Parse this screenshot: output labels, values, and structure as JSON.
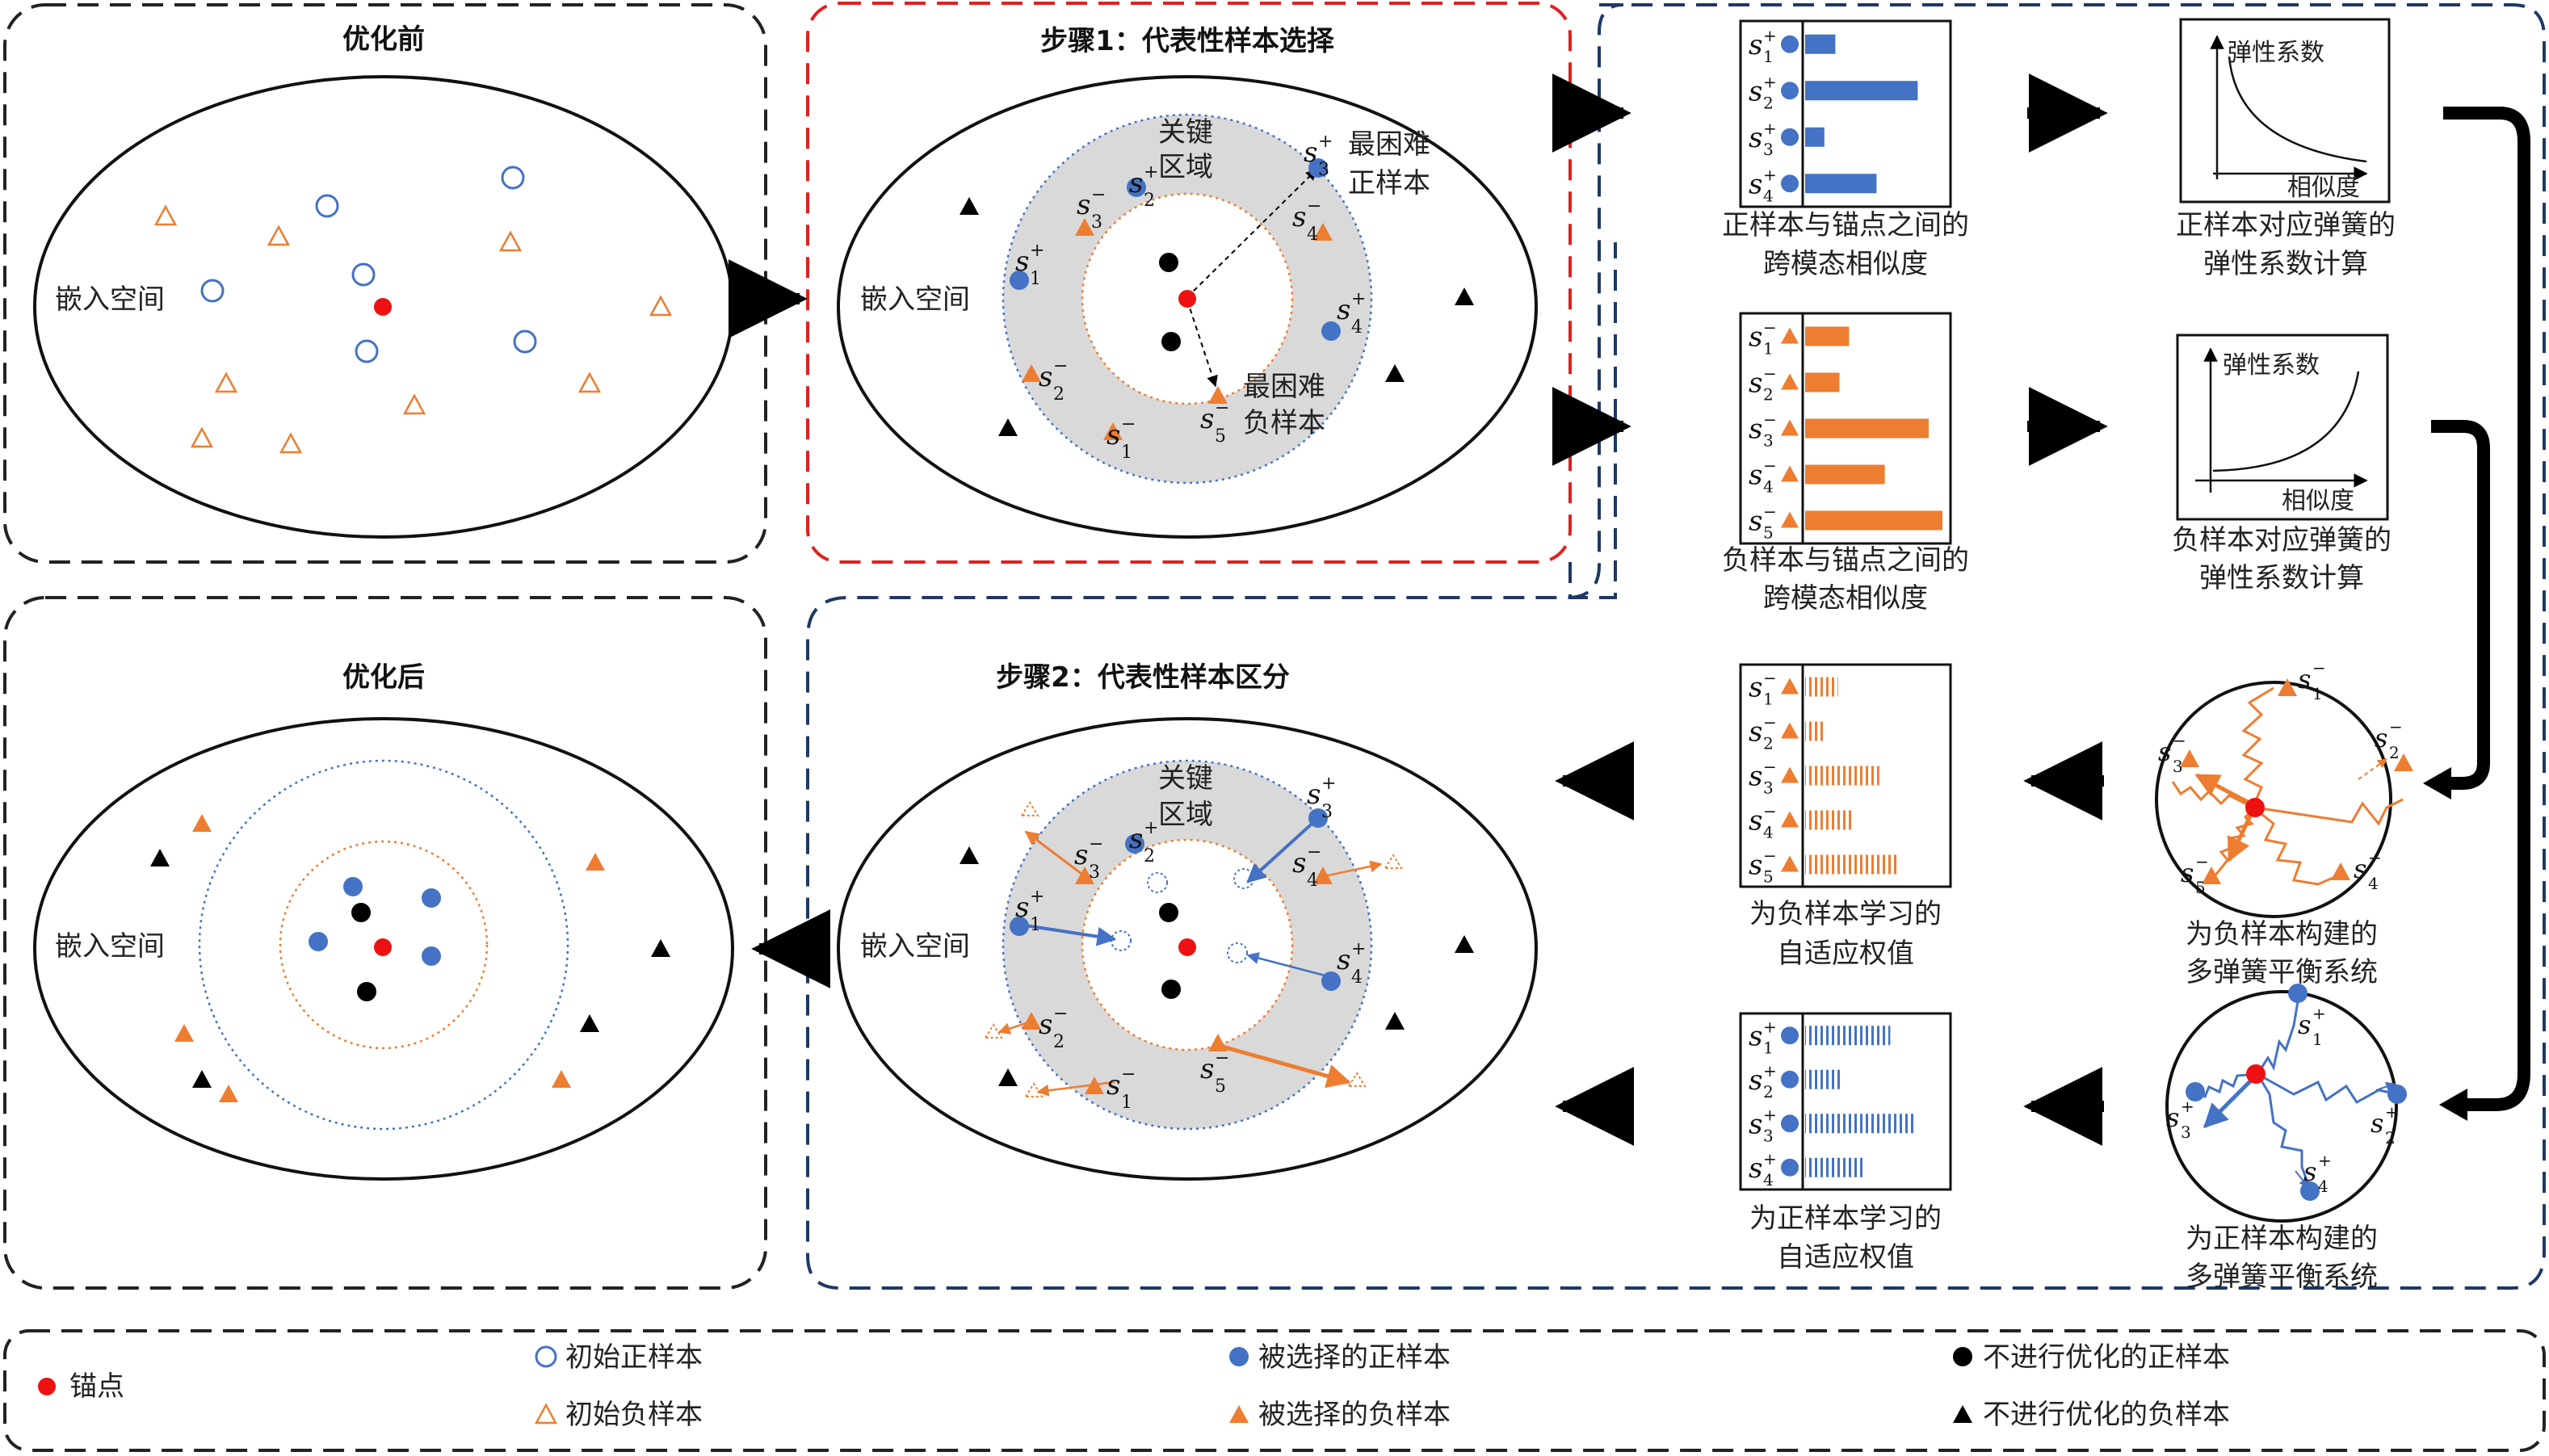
{
  "panels": {
    "before": {
      "title": "优化前",
      "space_label": "嵌入空间"
    },
    "step1": {
      "title": "步骤1：代表性样本选择",
      "space_label": "嵌入空间",
      "key_region_1": "关键",
      "key_region_2": "区域",
      "hard_pos_1": "最困难",
      "hard_pos_2": "正样本",
      "hard_neg_1": "最困难",
      "hard_neg_2": "负样本"
    },
    "step2": {
      "title": "步骤2：代表性样本区分",
      "space_label": "嵌入空间",
      "key_region_1": "关键",
      "key_region_2": "区域"
    },
    "after": {
      "title": "优化后",
      "space_label": "嵌入空间"
    }
  },
  "charts": {
    "pos_similarity": {
      "caption_1": "正样本与锚点之间的",
      "caption_2": "跨模态相似度",
      "values": [
        0.22,
        0.82,
        0.14,
        0.52
      ]
    },
    "neg_similarity": {
      "caption_1": "负样本与锚点之间的",
      "caption_2": "跨模态相似度",
      "values": [
        0.32,
        0.25,
        0.9,
        0.58,
        1.0
      ]
    },
    "neg_weights": {
      "caption_1": "为负样本学习的",
      "caption_2": "自适应权值",
      "values": [
        0.24,
        0.14,
        0.54,
        0.34,
        0.67
      ]
    },
    "pos_weights": {
      "caption_1": "为正样本学习的",
      "caption_2": "自适应权值",
      "values": [
        0.62,
        0.26,
        0.8,
        0.44
      ]
    }
  },
  "elasticity": {
    "pos": {
      "ylabel": "弹性系数",
      "xlabel": "相似度",
      "caption_1": "正样本对应弹簧的",
      "caption_2": "弹性系数计算"
    },
    "neg": {
      "ylabel": "弹性系数",
      "xlabel": "相似度",
      "caption_1": "负样本对应弹簧的",
      "caption_2": "弹性系数计算"
    }
  },
  "springs": {
    "neg": {
      "caption_1": "为负样本构建的",
      "caption_2": "多弹簧平衡系统"
    },
    "pos": {
      "caption_1": "为正样本构建的",
      "caption_2": "多弹簧平衡系统"
    }
  },
  "sample_labels": {
    "s": "s",
    "plus": "+",
    "minus": "−",
    "i1": "1",
    "i2": "2",
    "i3": "3",
    "i4": "4",
    "i5": "5"
  },
  "legend": {
    "anchor": "锚点",
    "init_pos": "初始正样本",
    "init_neg": "初始负样本",
    "sel_pos": "被选择的正样本",
    "sel_neg": "被选择的负样本",
    "fixed_pos": "不进行优化的正样本",
    "fixed_neg": "不进行优化的负样本"
  },
  "colors": {
    "anchor": "#ee1111",
    "positive": "#4472c4",
    "negative": "#ed7d31",
    "fixed": "#000000",
    "step1_border": "#e02020",
    "dash_blue": "#1f3864",
    "region": "#d9d9d9"
  }
}
